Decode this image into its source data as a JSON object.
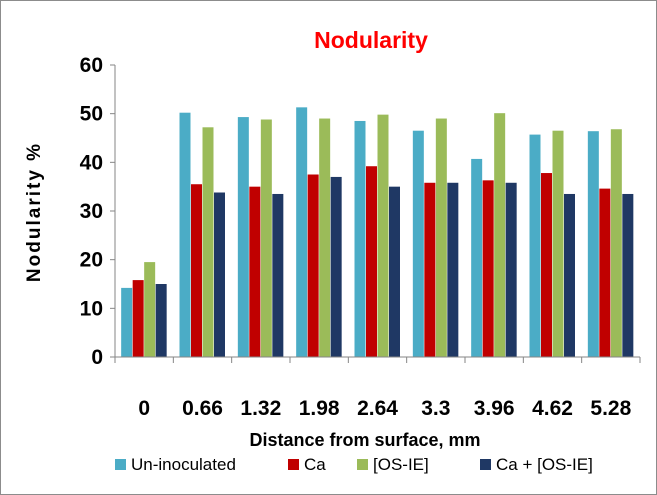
{
  "chart_data": {
    "type": "bar",
    "title": "Nodularity",
    "xlabel": "Distance  from surface, mm",
    "ylabel": "Nodularity %",
    "categories": [
      "0",
      "0.66",
      "1.32",
      "1.98",
      "2.64",
      "3.3",
      "3.96",
      "4.62",
      "5.28"
    ],
    "ylim": [
      0,
      60
    ],
    "yticks": [
      0,
      10,
      20,
      30,
      40,
      50,
      60
    ],
    "grid": false,
    "legend_position": "bottom",
    "series": [
      {
        "name": "Un-inoculated",
        "color": "#4bacc6",
        "values": [
          14.2,
          50.2,
          49.3,
          51.3,
          48.5,
          46.5,
          40.7,
          45.7,
          46.4
        ]
      },
      {
        "name": "Ca",
        "color": "#c00000",
        "values": [
          15.8,
          35.5,
          35.0,
          37.5,
          39.2,
          35.8,
          36.3,
          37.8,
          34.6
        ]
      },
      {
        "name": "[OS-IE]",
        "color": "#9bbb59",
        "values": [
          19.5,
          47.2,
          48.8,
          49.0,
          49.8,
          49.0,
          50.1,
          46.5,
          46.8
        ]
      },
      {
        "name": "Ca + [OS-IE]",
        "color": "#1f3864",
        "values": [
          15.0,
          33.8,
          33.5,
          37.0,
          35.0,
          35.8,
          35.8,
          33.5,
          33.5
        ]
      }
    ]
  }
}
